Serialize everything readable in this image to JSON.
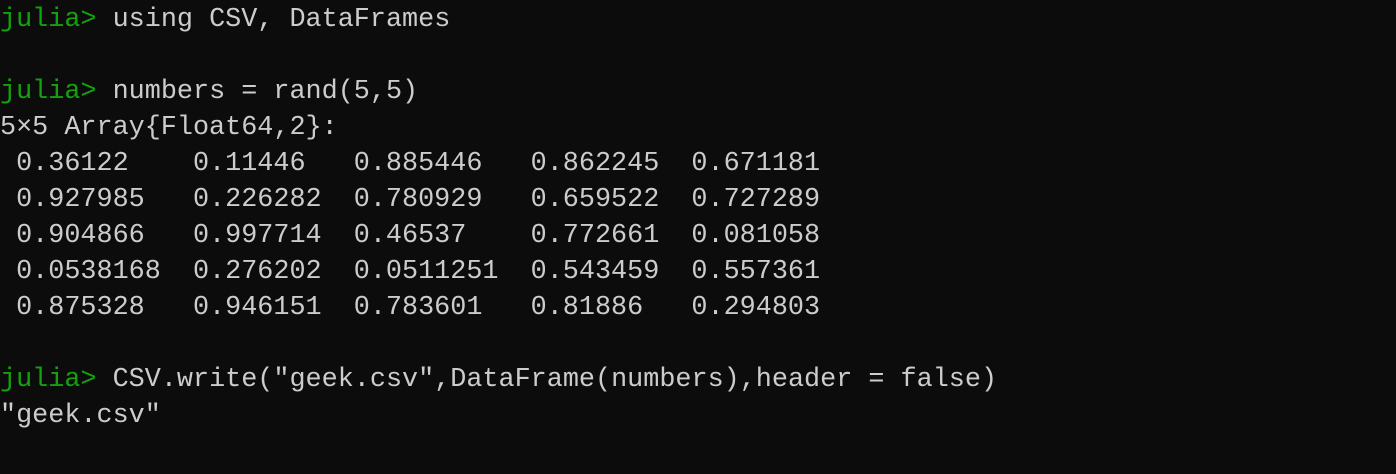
{
  "colors": {
    "background": "#0c0c0c",
    "text": "#cccccc",
    "prompt": "#13a10e"
  },
  "prompt": "julia> ",
  "commands": [
    "using CSV, DataFrames",
    "numbers = rand(5,5)",
    "CSV.write(\"geek.csv\",DataFrame(numbers),header = false)"
  ],
  "array_header": "5×5 Array{Float64,2}:",
  "matrix": [
    [
      "0.36122",
      "0.11446",
      "0.885446",
      "0.862245",
      "0.671181"
    ],
    [
      "0.927985",
      "0.226282",
      "0.780929",
      "0.659522",
      "0.727289"
    ],
    [
      "0.904866",
      "0.997714",
      "0.46537",
      "0.772661",
      "0.081058"
    ],
    [
      "0.0538168",
      "0.276202",
      "0.0511251",
      "0.543459",
      "0.557361"
    ],
    [
      "0.875328",
      "0.946151",
      "0.783601",
      "0.81886",
      "0.294803"
    ]
  ],
  "write_output": "\"geek.csv\""
}
